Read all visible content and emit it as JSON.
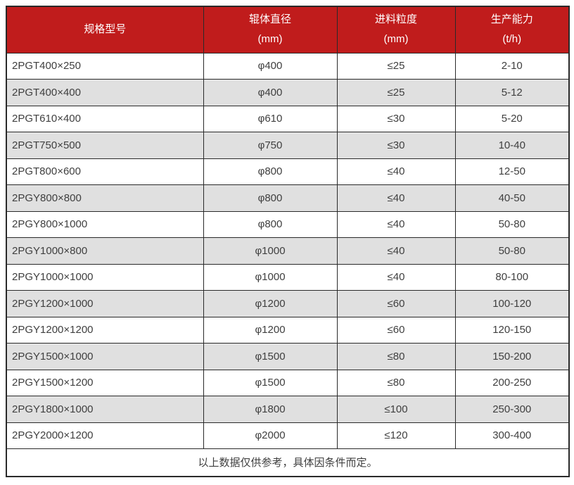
{
  "table": {
    "columns": [
      {
        "title": "规格型号",
        "unit": ""
      },
      {
        "title": "辊体直径",
        "unit": "(mm)"
      },
      {
        "title": "进料粒度",
        "unit": "(mm)"
      },
      {
        "title": "生产能力",
        "unit": "(t/h)"
      }
    ],
    "rows": [
      [
        "2PGT400×250",
        "φ400",
        "≤25",
        "2-10"
      ],
      [
        "2PGT400×400",
        "φ400",
        "≤25",
        "5-12"
      ],
      [
        "2PGT610×400",
        "φ610",
        "≤30",
        "5-20"
      ],
      [
        "2PGT750×500",
        "φ750",
        "≤30",
        "10-40"
      ],
      [
        "2PGT800×600",
        "φ800",
        "≤40",
        "12-50"
      ],
      [
        "2PGY800×800",
        "φ800",
        "≤40",
        "40-50"
      ],
      [
        "2PGY800×1000",
        "φ800",
        "≤40",
        "50-80"
      ],
      [
        "2PGY1000×800",
        "φ1000",
        "≤40",
        "50-80"
      ],
      [
        "2PGY1000×1000",
        "φ1000",
        "≤40",
        "80-100"
      ],
      [
        "2PGY1200×1000",
        "φ1200",
        "≤60",
        "100-120"
      ],
      [
        "2PGY1200×1200",
        "φ1200",
        "≤60",
        "120-150"
      ],
      [
        "2PGY1500×1000",
        "φ1500",
        "≤80",
        "150-200"
      ],
      [
        "2PGY1500×1200",
        "φ1500",
        "≤80",
        "200-250"
      ],
      [
        "2PGY1800×1000",
        "φ1800",
        "≤100",
        "250-300"
      ],
      [
        "2PGY2000×1200",
        "φ2000",
        "≤120",
        "300-400"
      ]
    ],
    "footnote": "以上数据仅供参考，具体因条件而定。"
  },
  "colors": {
    "header_bg": "#c01c1c",
    "header_text": "#ffffff",
    "row_bg": "#ffffff",
    "row_alt_bg": "#e0e0e0",
    "border": "#2a2a2a",
    "text": "#3f3f3f"
  }
}
